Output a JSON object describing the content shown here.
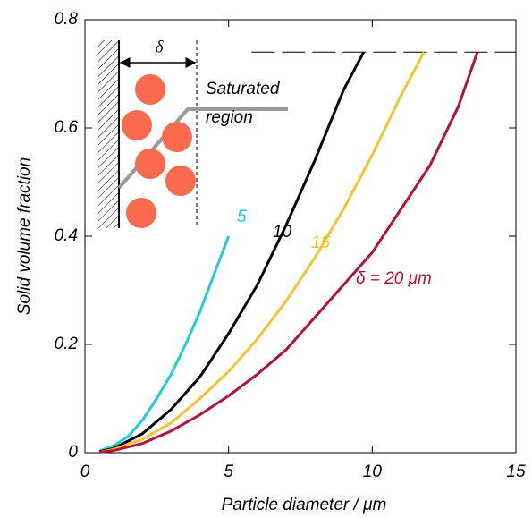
{
  "chart_data": {
    "type": "line",
    "x_label": "Particle diameter  /  μm",
    "y_label": "Solid volume fraction",
    "xlim": [
      0,
      15
    ],
    "ylim": [
      0,
      0.8
    ],
    "xticks": [
      0,
      5,
      10,
      15
    ],
    "yticks": [
      0,
      0.2,
      0.4,
      0.6,
      0.8
    ],
    "series": [
      {
        "name": "5",
        "color": "#1fcfd8",
        "x": [
          0.5,
          1,
          1.5,
          2,
          2.5,
          3,
          3.5,
          4,
          4.5,
          5
        ],
        "values": [
          0.003,
          0.013,
          0.03,
          0.06,
          0.1,
          0.145,
          0.2,
          0.26,
          0.33,
          0.4
        ]
      },
      {
        "name": "10",
        "color": "#000000",
        "x": [
          0.5,
          1,
          2,
          3,
          4,
          5,
          6,
          7,
          8,
          9,
          9.7
        ],
        "values": [
          0.002,
          0.008,
          0.035,
          0.08,
          0.14,
          0.22,
          0.31,
          0.42,
          0.54,
          0.67,
          0.74
        ]
      },
      {
        "name": "15",
        "color": "#f4c430",
        "x": [
          0.5,
          1,
          2,
          3,
          4,
          5,
          6,
          7,
          8,
          9,
          10,
          11,
          11.8
        ],
        "values": [
          0.001,
          0.006,
          0.025,
          0.055,
          0.1,
          0.15,
          0.21,
          0.28,
          0.36,
          0.45,
          0.55,
          0.66,
          0.74
        ]
      },
      {
        "name": "δ = 20 μm",
        "color": "#b5123a",
        "x": [
          0.5,
          1,
          2,
          3,
          4,
          5,
          6,
          7,
          8,
          9,
          10,
          11,
          12,
          13,
          13.66
        ],
        "values": [
          0.001,
          0.004,
          0.017,
          0.04,
          0.07,
          0.105,
          0.145,
          0.19,
          0.25,
          0.31,
          0.37,
          0.45,
          0.53,
          0.64,
          0.74
        ]
      }
    ],
    "dashed_line": {
      "y": 0.74,
      "x": [
        5.8,
        15
      ]
    },
    "inset": {
      "delta": "δ",
      "label_line1": "Saturated",
      "label_line2": "region"
    }
  }
}
